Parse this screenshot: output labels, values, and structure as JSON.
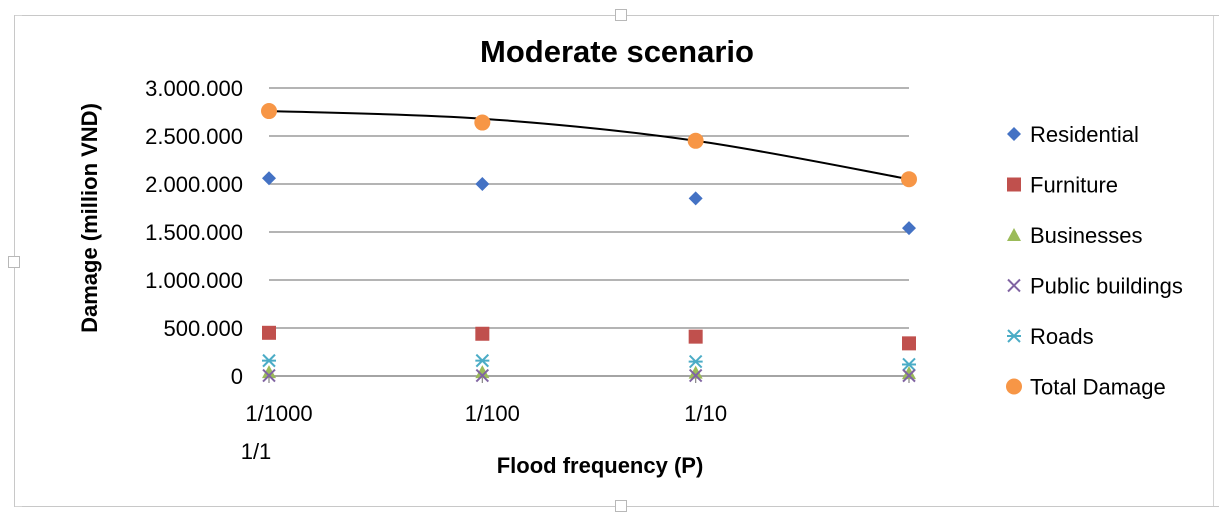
{
  "chart_data": {
    "type": "scatter",
    "title": "Moderate scenario",
    "xlabel": "Flood frequency (P)",
    "ylabel": "Damage (million VND)",
    "ylim": [
      0,
      3000000
    ],
    "y_ticks": [
      {
        "value": 0,
        "label": "0"
      },
      {
        "value": 500000,
        "label": "500.000"
      },
      {
        "value": 1000000,
        "label": "1.000.000"
      },
      {
        "value": 1500000,
        "label": "1.500.000"
      },
      {
        "value": 2000000,
        "label": "2.000.000"
      },
      {
        "value": 2500000,
        "label": "2.500.000"
      },
      {
        "value": 3000000,
        "label": "3.000.000"
      }
    ],
    "x_ticks": [
      {
        "index": 0,
        "label": "1/1000"
      },
      {
        "index": 1,
        "label": "1/100"
      },
      {
        "index": 2,
        "label": "1/10"
      }
    ],
    "x_extra_label": "1/1",
    "xlim_index": [
      0,
      3
    ],
    "point_x_index": [
      0,
      1,
      2,
      3
    ],
    "grid": "horizontal",
    "legend_position": "right",
    "series": [
      {
        "name": "Residential",
        "marker": "diamond",
        "color": "#4472c4",
        "values": [
          2060000,
          2000000,
          1850000,
          1540000
        ]
      },
      {
        "name": "Furniture",
        "marker": "square",
        "color": "#c0504d",
        "values": [
          450000,
          440000,
          410000,
          340000
        ]
      },
      {
        "name": "Businesses",
        "marker": "triangle",
        "color": "#9bbb59",
        "values": [
          40000,
          40000,
          35000,
          30000
        ]
      },
      {
        "name": "Public buildings",
        "marker": "cross",
        "color": "#8064a2",
        "values": [
          5000,
          5000,
          5000,
          4000
        ]
      },
      {
        "name": "Roads",
        "marker": "star",
        "color": "#4bacc6",
        "values": [
          160000,
          160000,
          150000,
          120000
        ]
      },
      {
        "name": "Total Damage",
        "marker": "circle",
        "color": "#f79646",
        "values": [
          2760000,
          2640000,
          2450000,
          2050000
        ]
      }
    ],
    "trendline": {
      "based_on": "Total Damage",
      "color": "#000000",
      "values": [
        2760000,
        2680000,
        2450000,
        2050000
      ]
    }
  }
}
